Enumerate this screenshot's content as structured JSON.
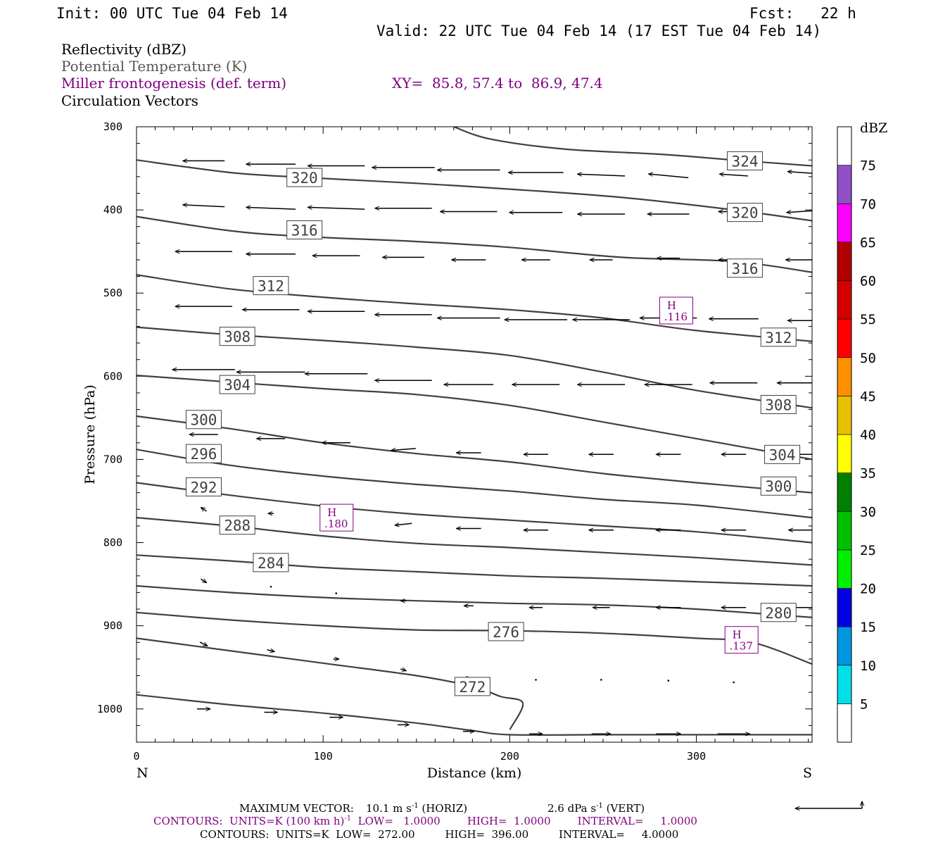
{
  "header": {
    "init": "Init: 00 UTC Tue 04 Feb 14",
    "fcst": "Fcst:   22 h",
    "valid": "Valid: 22 UTC Tue 04 Feb 14 (17 EST Tue 04 Feb 14)"
  },
  "fields": {
    "reflectivity": "Reflectivity (dBZ)",
    "theta": "Potential Temperature (K)",
    "frontogenesis": "Miller frontogenesis (def. term)",
    "xy": "XY=  85.8, 57.4 to  86.9, 47.4",
    "circulation": "Circulation Vectors"
  },
  "colors": {
    "theta": "#404040",
    "frontogenesis": "#800080",
    "vectors": "#000000"
  },
  "chart_data": {
    "type": "line",
    "xlabel": "Distance (km)",
    "ylabel": "Pressure (hPa)",
    "xlim": [
      0,
      362
    ],
    "ylim": [
      300,
      1040
    ],
    "x_ticks": [
      0,
      100,
      200,
      300
    ],
    "y_ticks": [
      300,
      400,
      500,
      600,
      700,
      800,
      900,
      1000
    ],
    "left_end_label": "N",
    "right_end_label": "S",
    "isentropes": [
      {
        "label": "324",
        "x": [
          170,
          190,
          230,
          280,
          320,
          362
        ],
        "y": [
          300,
          315,
          327,
          333,
          340,
          347
        ]
      },
      {
        "label": "320",
        "x": [
          0,
          50,
          90,
          150,
          200,
          260,
          320,
          362
        ],
        "y": [
          340,
          355,
          361,
          368,
          375,
          385,
          400,
          413
        ]
      },
      {
        "label": "316",
        "x": [
          0,
          50,
          90,
          150,
          200,
          260,
          320,
          362
        ],
        "y": [
          408,
          425,
          432,
          438,
          445,
          457,
          462,
          475
        ]
      },
      {
        "label": "312",
        "x": [
          0,
          50,
          100,
          150,
          200,
          250,
          300,
          362
        ],
        "y": [
          478,
          495,
          505,
          513,
          520,
          530,
          545,
          558
        ]
      },
      {
        "label": "308",
        "x": [
          0,
          50,
          100,
          150,
          200,
          250,
          300,
          362
        ],
        "y": [
          541,
          550,
          557,
          565,
          575,
          595,
          617,
          638
        ]
      },
      {
        "label": "304",
        "x": [
          0,
          50,
          100,
          150,
          200,
          250,
          300,
          362
        ],
        "y": [
          599,
          607,
          615,
          622,
          635,
          655,
          675,
          700
        ]
      },
      {
        "label": "300",
        "x": [
          0,
          50,
          100,
          150,
          200,
          250,
          300,
          362
        ],
        "y": [
          648,
          663,
          680,
          693,
          703,
          717,
          728,
          740
        ]
      },
      {
        "label": "296",
        "x": [
          0,
          50,
          100,
          150,
          200,
          250,
          300,
          362
        ],
        "y": [
          688,
          707,
          720,
          730,
          738,
          748,
          755,
          770
        ]
      },
      {
        "label": "292",
        "x": [
          0,
          50,
          100,
          150,
          200,
          250,
          300,
          362
        ],
        "y": [
          728,
          743,
          756,
          766,
          773,
          780,
          787,
          800
        ]
      },
      {
        "label": "288",
        "x": [
          0,
          50,
          100,
          150,
          200,
          250,
          300,
          362
        ],
        "y": [
          770,
          780,
          792,
          801,
          806,
          812,
          818,
          827
        ]
      },
      {
        "label": "284",
        "x": [
          0,
          50,
          100,
          150,
          200,
          250,
          300,
          362
        ],
        "y": [
          815,
          822,
          830,
          835,
          840,
          843,
          847,
          852
        ]
      },
      {
        "label": "280",
        "x": [
          0,
          50,
          100,
          150,
          200,
          250,
          300,
          362
        ],
        "y": [
          852,
          860,
          866,
          870,
          873,
          875,
          880,
          890
        ]
      },
      {
        "label": "276",
        "x": [
          0,
          50,
          100,
          150,
          200,
          250,
          300,
          330,
          362
        ],
        "y": [
          884,
          893,
          900,
          905,
          906,
          909,
          915,
          920,
          946
        ]
      },
      {
        "label": "272",
        "x": [
          0,
          50,
          100,
          150,
          180,
          195,
          207,
          200
        ],
        "y": [
          915,
          930,
          945,
          960,
          973,
          985,
          993,
          1025
        ]
      },
      {
        "label": "",
        "x": [
          0,
          50,
          100,
          150,
          180,
          200,
          250,
          300,
          362
        ],
        "y": [
          983,
          995,
          1005,
          1017,
          1026,
          1031,
          1031,
          1031,
          1031
        ]
      }
    ],
    "theta_labels": [
      {
        "text": "320",
        "x": 90,
        "y": 361
      },
      {
        "text": "324",
        "x": 326,
        "y": 341
      },
      {
        "text": "316",
        "x": 90,
        "y": 424
      },
      {
        "text": "320",
        "x": 326,
        "y": 403
      },
      {
        "text": "312",
        "x": 72,
        "y": 491
      },
      {
        "text": "316",
        "x": 326,
        "y": 470
      },
      {
        "text": "308",
        "x": 54,
        "y": 552
      },
      {
        "text": "312",
        "x": 344,
        "y": 553
      },
      {
        "text": "304",
        "x": 54,
        "y": 610
      },
      {
        "text": "308",
        "x": 344,
        "y": 634
      },
      {
        "text": "300",
        "x": 36,
        "y": 652
      },
      {
        "text": "304",
        "x": 346,
        "y": 694
      },
      {
        "text": "296",
        "x": 36,
        "y": 693
      },
      {
        "text": "300",
        "x": 344,
        "y": 732
      },
      {
        "text": "292",
        "x": 36,
        "y": 733
      },
      {
        "text": "288",
        "x": 54,
        "y": 779
      },
      {
        "text": "284",
        "x": 72,
        "y": 824
      },
      {
        "text": "280",
        "x": 344,
        "y": 884
      },
      {
        "text": "276",
        "x": 198,
        "y": 907
      },
      {
        "text": "272",
        "x": 180,
        "y": 973
      }
    ],
    "maxima": [
      {
        "label": "H",
        "value": ".116",
        "x": 289,
        "y": 521
      },
      {
        "label": "H",
        "value": ".180",
        "x": 107,
        "y": 770
      },
      {
        "label": "H",
        "value": ".137",
        "x": 324,
        "y": 917
      }
    ],
    "vectors": [
      {
        "x": 36,
        "y": 341,
        "u": -22,
        "w": 0
      },
      {
        "x": 72,
        "y": 345,
        "u": -26,
        "w": 0
      },
      {
        "x": 107,
        "y": 347,
        "u": -30,
        "w": 0
      },
      {
        "x": 143,
        "y": 349,
        "u": -33,
        "w": 0
      },
      {
        "x": 178,
        "y": 352,
        "u": -33,
        "w": 0
      },
      {
        "x": 214,
        "y": 355,
        "u": -29,
        "w": 0
      },
      {
        "x": 249,
        "y": 358,
        "u": -25,
        "w": 1
      },
      {
        "x": 285,
        "y": 359,
        "u": -21,
        "w": 2
      },
      {
        "x": 320,
        "y": 358,
        "u": -15,
        "w": 1
      },
      {
        "x": 356,
        "y": 355,
        "u": -14,
        "w": 1
      },
      {
        "x": 36,
        "y": 395,
        "u": -22,
        "w": 1
      },
      {
        "x": 72,
        "y": 398,
        "u": -26,
        "w": 1
      },
      {
        "x": 107,
        "y": 398,
        "u": -30,
        "w": 1
      },
      {
        "x": 143,
        "y": 398,
        "u": -30,
        "w": 0
      },
      {
        "x": 178,
        "y": 402,
        "u": -30,
        "w": 0
      },
      {
        "x": 214,
        "y": 403,
        "u": -28,
        "w": 0
      },
      {
        "x": 249,
        "y": 405,
        "u": -25,
        "w": 0
      },
      {
        "x": 285,
        "y": 405,
        "u": -22,
        "w": 0
      },
      {
        "x": 320,
        "y": 402,
        "u": -16,
        "w": 0
      },
      {
        "x": 356,
        "y": 402,
        "u": -15,
        "w": -1
      },
      {
        "x": 36,
        "y": 450,
        "u": -30,
        "w": 0
      },
      {
        "x": 72,
        "y": 453,
        "u": -26,
        "w": 0
      },
      {
        "x": 107,
        "y": 455,
        "u": -25,
        "w": 0
      },
      {
        "x": 143,
        "y": 457,
        "u": -22,
        "w": 0
      },
      {
        "x": 178,
        "y": 460,
        "u": -18,
        "w": 0
      },
      {
        "x": 214,
        "y": 460,
        "u": -15,
        "w": 0
      },
      {
        "x": 249,
        "y": 460,
        "u": -12,
        "w": 0
      },
      {
        "x": 285,
        "y": 458,
        "u": -12,
        "w": 0
      },
      {
        "x": 320,
        "y": 460,
        "u": -16,
        "w": 0
      },
      {
        "x": 356,
        "y": 460,
        "u": -16,
        "w": 0
      },
      {
        "x": 36,
        "y": 516,
        "u": -30,
        "w": 0
      },
      {
        "x": 72,
        "y": 520,
        "u": -30,
        "w": 0
      },
      {
        "x": 107,
        "y": 522,
        "u": -30,
        "w": 0
      },
      {
        "x": 143,
        "y": 526,
        "u": -30,
        "w": 0
      },
      {
        "x": 178,
        "y": 530,
        "u": -33,
        "w": 0
      },
      {
        "x": 214,
        "y": 532,
        "u": -33,
        "w": 0
      },
      {
        "x": 249,
        "y": 532,
        "u": -30,
        "w": 0
      },
      {
        "x": 285,
        "y": 530,
        "u": -30,
        "w": 0
      },
      {
        "x": 320,
        "y": 531,
        "u": -26,
        "w": 0
      },
      {
        "x": 356,
        "y": 533,
        "u": -14,
        "w": 0
      },
      {
        "x": 36,
        "y": 592,
        "u": -33,
        "w": 0
      },
      {
        "x": 72,
        "y": 595,
        "u": -36,
        "w": 0
      },
      {
        "x": 107,
        "y": 597,
        "u": -33,
        "w": 0
      },
      {
        "x": 143,
        "y": 605,
        "u": -30,
        "w": 0
      },
      {
        "x": 178,
        "y": 610,
        "u": -26,
        "w": 0
      },
      {
        "x": 214,
        "y": 610,
        "u": -25,
        "w": 0
      },
      {
        "x": 249,
        "y": 610,
        "u": -25,
        "w": 0
      },
      {
        "x": 285,
        "y": 610,
        "u": -25,
        "w": 0
      },
      {
        "x": 320,
        "y": 608,
        "u": -25,
        "w": 0
      },
      {
        "x": 356,
        "y": 608,
        "u": -25,
        "w": 0
      },
      {
        "x": 36,
        "y": 670,
        "u": -15,
        "w": 0
      },
      {
        "x": 72,
        "y": 675,
        "u": -15,
        "w": 0
      },
      {
        "x": 107,
        "y": 680,
        "u": -15,
        "w": 0
      },
      {
        "x": 143,
        "y": 688,
        "u": -13,
        "w": -1
      },
      {
        "x": 178,
        "y": 692,
        "u": -13,
        "w": 0
      },
      {
        "x": 214,
        "y": 694,
        "u": -13,
        "w": 0
      },
      {
        "x": 249,
        "y": 694,
        "u": -13,
        "w": 0
      },
      {
        "x": 285,
        "y": 694,
        "u": -13,
        "w": 0
      },
      {
        "x": 320,
        "y": 694,
        "u": -13,
        "w": 0
      },
      {
        "x": 356,
        "y": 694,
        "u": -13,
        "w": 0
      },
      {
        "x": 36,
        "y": 760,
        "u": -3,
        "w": 2
      },
      {
        "x": 72,
        "y": 765,
        "u": -3,
        "w": 0
      },
      {
        "x": 107,
        "y": 770,
        "u": -4,
        "w": -1
      },
      {
        "x": 143,
        "y": 778,
        "u": -9,
        "w": -1
      },
      {
        "x": 178,
        "y": 783,
        "u": -13,
        "w": 0
      },
      {
        "x": 214,
        "y": 785,
        "u": -13,
        "w": 0
      },
      {
        "x": 249,
        "y": 785,
        "u": -13,
        "w": 0
      },
      {
        "x": 285,
        "y": 785,
        "u": -13,
        "w": 0
      },
      {
        "x": 320,
        "y": 785,
        "u": -13,
        "w": 0
      },
      {
        "x": 356,
        "y": 785,
        "u": -13,
        "w": 0
      },
      {
        "x": 36,
        "y": 846,
        "u": 3,
        "w": -2
      },
      {
        "x": 72,
        "y": 853,
        "u": 0,
        "w": -1
      },
      {
        "x": 107,
        "y": 861,
        "u": -1,
        "w": 0
      },
      {
        "x": 143,
        "y": 870,
        "u": -3,
        "w": 0
      },
      {
        "x": 178,
        "y": 876,
        "u": -5,
        "w": 0
      },
      {
        "x": 214,
        "y": 878,
        "u": -7,
        "w": 0
      },
      {
        "x": 249,
        "y": 878,
        "u": -9,
        "w": 0
      },
      {
        "x": 285,
        "y": 878,
        "u": -13,
        "w": 0
      },
      {
        "x": 320,
        "y": 878,
        "u": -13,
        "w": 0
      },
      {
        "x": 356,
        "y": 878,
        "u": -13,
        "w": 0
      },
      {
        "x": 36,
        "y": 922,
        "u": 4,
        "w": -2
      },
      {
        "x": 72,
        "y": 930,
        "u": 4,
        "w": -1
      },
      {
        "x": 107,
        "y": 940,
        "u": 3,
        "w": 0
      },
      {
        "x": 143,
        "y": 953,
        "u": 3,
        "w": -1
      },
      {
        "x": 178,
        "y": 963,
        "u": 2,
        "w": 0
      },
      {
        "x": 214,
        "y": 965,
        "u": 1,
        "w": 0
      },
      {
        "x": 249,
        "y": 965,
        "u": 0,
        "w": 0
      },
      {
        "x": 285,
        "y": 966,
        "u": 0,
        "w": 1
      },
      {
        "x": 320,
        "y": 968,
        "u": 0,
        "w": 1
      },
      {
        "x": 36,
        "y": 1000,
        "u": 7,
        "w": 0
      },
      {
        "x": 72,
        "y": 1004,
        "u": 7,
        "w": 0
      },
      {
        "x": 107,
        "y": 1010,
        "u": 7,
        "w": 0
      },
      {
        "x": 143,
        "y": 1019,
        "u": 6,
        "w": 0
      },
      {
        "x": 178,
        "y": 1027,
        "u": 6,
        "w": 0
      },
      {
        "x": 214,
        "y": 1030,
        "u": 7,
        "w": 0
      },
      {
        "x": 249,
        "y": 1030,
        "u": 10,
        "w": 0
      },
      {
        "x": 285,
        "y": 1030,
        "u": 13,
        "w": 0
      },
      {
        "x": 320,
        "y": 1030,
        "u": 17,
        "w": 0
      }
    ]
  },
  "colorbar": {
    "unit": "dBZ",
    "levels": [
      "5",
      "10",
      "15",
      "20",
      "25",
      "30",
      "35",
      "40",
      "45",
      "50",
      "55",
      "60",
      "65",
      "70",
      "75"
    ],
    "colors": [
      "#ffffff",
      "#00e0e8",
      "#0096e0",
      "#0000e0",
      "#00f000",
      "#00c000",
      "#008000",
      "#ffff00",
      "#e8c000",
      "#ff9000",
      "#ff0000",
      "#d40000",
      "#b00000",
      "#ff00ff",
      "#9050c8",
      "#ffffff"
    ]
  },
  "footer": {
    "max_vector_label": "MAXIMUM VECTOR:",
    "max_vector_horiz": "10.1 m s",
    "horiz_exp": "-1",
    "horiz_tail": " (HORIZ)",
    "max_vector_vert": "2.6 dPa s",
    "vert_exp": "-1",
    "vert_tail": " (VERT)",
    "contours1_a": "CONTOURS:  UNITS=K (100 km h)",
    "contours1_exp": "-1",
    "contours1_b": "  LOW=   1.0000        HIGH=  1.0000        INTERVAL=     1.0000",
    "contours2": "CONTOURS:  UNITS=K  LOW=  272.00         HIGH=  396.00         INTERVAL=     4.0000"
  }
}
